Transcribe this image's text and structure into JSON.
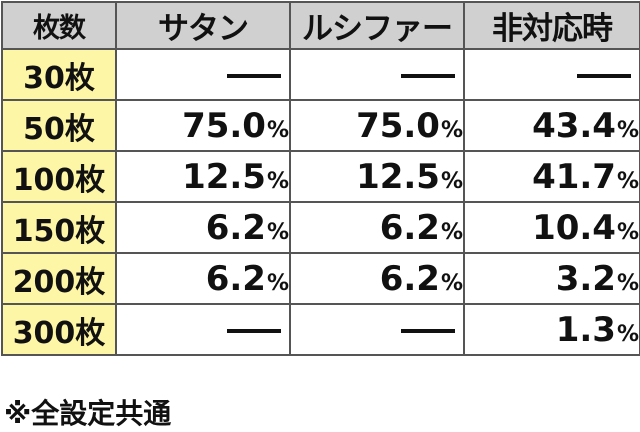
{
  "table": {
    "headers": [
      "枚数",
      "サタン",
      "ルシファー",
      "非対応時"
    ],
    "rows": [
      {
        "label": "30枚",
        "values": [
          "—",
          "—",
          "—"
        ]
      },
      {
        "label": "50枚",
        "values": [
          "75.0",
          "75.0",
          "43.4"
        ]
      },
      {
        "label": "100枚",
        "values": [
          "12.5",
          "12.5",
          "41.7"
        ]
      },
      {
        "label": "150枚",
        "values": [
          "6.2",
          "6.2",
          "10.4"
        ]
      },
      {
        "label": "200枚",
        "values": [
          "6.2",
          "6.2",
          "3.2"
        ]
      },
      {
        "label": "300枚",
        "values": [
          "—",
          "—",
          "1.3"
        ]
      }
    ],
    "unit": "%"
  },
  "footnote": "※全設定共通",
  "colors": {
    "header_bg": "#d0d0d0",
    "header_text": "#7a22b6",
    "row_label_bg": "#fdf6a7",
    "border": "#555555"
  }
}
